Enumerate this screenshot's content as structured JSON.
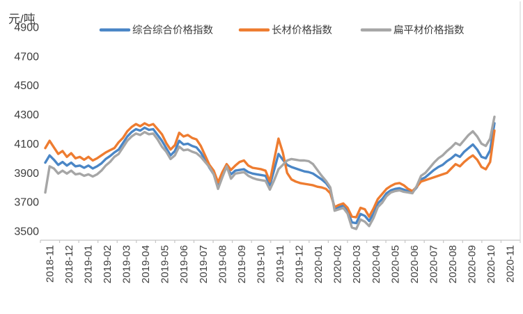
{
  "chart_data": {
    "type": "line",
    "title": "",
    "y_axis_label": "元/吨",
    "ylim": [
      3500,
      4900
    ],
    "y_ticks": [
      4900,
      4700,
      4500,
      4300,
      4100,
      3900,
      3700,
      3500
    ],
    "x_ticks": [
      "2018-11",
      "2018-12",
      "2019-01",
      "2019-02",
      "2019-03",
      "2019-04",
      "2019-05",
      "2019-06",
      "2019-07",
      "2019-08",
      "2019-09",
      "2019-10",
      "2019-11",
      "2019-12",
      "2020-01",
      "2020-02",
      "2020-03",
      "2020-04",
      "2020-05",
      "2020-06",
      "2020-07",
      "2020-08",
      "2020-09",
      "2020-10",
      "2020-11"
    ],
    "grid": false,
    "legend_position": "top",
    "x_resolution": "weekly",
    "axis_color": "#c6c6c6",
    "border_color": "#d9d9d9",
    "series": [
      {
        "name": "综合综合价格指数",
        "color": "#4a86c6",
        "values": [
          3970,
          4020,
          3990,
          3955,
          3975,
          3950,
          3970,
          3945,
          3950,
          3935,
          3950,
          3930,
          3945,
          3965,
          3995,
          4015,
          4040,
          4060,
          4105,
          4150,
          4180,
          4200,
          4190,
          4210,
          4195,
          4200,
          4160,
          4120,
          4070,
          4020,
          4050,
          4120,
          4095,
          4100,
          4085,
          4075,
          4040,
          3990,
          3935,
          3890,
          3810,
          3880,
          3940,
          3890,
          3915,
          3920,
          3925,
          3905,
          3895,
          3890,
          3885,
          3880,
          3815,
          3920,
          4030,
          3990,
          3955,
          3940,
          3930,
          3920,
          3910,
          3905,
          3895,
          3875,
          3855,
          3830,
          3790,
          3655,
          3665,
          3675,
          3640,
          3560,
          3555,
          3618,
          3605,
          3570,
          3620,
          3690,
          3720,
          3760,
          3780,
          3790,
          3795,
          3785,
          3775,
          3765,
          3800,
          3855,
          3870,
          3895,
          3920,
          3940,
          3955,
          3980,
          4000,
          4025,
          4010,
          4045,
          4070,
          4095,
          4060,
          4010,
          4000,
          4055,
          4240
        ]
      },
      {
        "name": "长材价格指数",
        "color": "#ee7c30",
        "values": [
          4070,
          4120,
          4075,
          4030,
          4050,
          4010,
          4035,
          4000,
          4010,
          3990,
          4010,
          3985,
          4000,
          4020,
          4040,
          4055,
          4070,
          4110,
          4140,
          4185,
          4215,
          4235,
          4220,
          4240,
          4225,
          4235,
          4200,
          4165,
          4105,
          4060,
          4090,
          4175,
          4150,
          4160,
          4140,
          4130,
          4085,
          4020,
          3955,
          3915,
          3835,
          3905,
          3960,
          3920,
          3950,
          3975,
          3985,
          3950,
          3935,
          3930,
          3925,
          3915,
          3840,
          3990,
          4135,
          4040,
          3900,
          3855,
          3840,
          3830,
          3825,
          3820,
          3815,
          3805,
          3800,
          3790,
          3760,
          3665,
          3680,
          3690,
          3660,
          3600,
          3595,
          3660,
          3650,
          3600,
          3655,
          3720,
          3755,
          3790,
          3810,
          3825,
          3830,
          3815,
          3790,
          3775,
          3805,
          3840,
          3850,
          3860,
          3870,
          3880,
          3890,
          3900,
          3930,
          3960,
          3945,
          3975,
          4000,
          4020,
          3990,
          3940,
          3925,
          3975,
          4190
        ]
      },
      {
        "name": "扁平材价格指数",
        "color": "#a6a6a6",
        "values": [
          3765,
          3945,
          3930,
          3895,
          3915,
          3895,
          3915,
          3890,
          3895,
          3880,
          3890,
          3875,
          3890,
          3915,
          3950,
          3975,
          4010,
          4030,
          4075,
          4120,
          4150,
          4170,
          4160,
          4180,
          4165,
          4170,
          4130,
          4080,
          4045,
          3995,
          4020,
          4080,
          4055,
          4060,
          4045,
          4035,
          4010,
          3975,
          3940,
          3890,
          3790,
          3870,
          3945,
          3860,
          3895,
          3900,
          3905,
          3880,
          3865,
          3855,
          3850,
          3845,
          3785,
          3850,
          3925,
          3955,
          3985,
          3995,
          3990,
          3985,
          3985,
          3980,
          3960,
          3920,
          3880,
          3845,
          3800,
          3640,
          3650,
          3660,
          3620,
          3525,
          3515,
          3580,
          3565,
          3535,
          3590,
          3665,
          3695,
          3740,
          3765,
          3775,
          3780,
          3770,
          3765,
          3760,
          3810,
          3880,
          3900,
          3935,
          3970,
          4000,
          4020,
          4050,
          4075,
          4105,
          4090,
          4125,
          4160,
          4185,
          4150,
          4100,
          4085,
          4135,
          4285
        ]
      }
    ]
  }
}
